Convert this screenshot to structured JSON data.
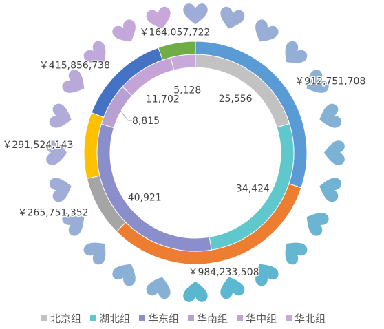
{
  "chart_data": {
    "type": "doughnut",
    "legend_position": "bottom",
    "categories": [
      "北京组",
      "湖北组",
      "华东组",
      "华南组",
      "华中组",
      "华北组"
    ],
    "colors": {
      "inner": [
        "#c2c2c2",
        "#5ec8cc",
        "#8a8fcc",
        "#b9a0d2",
        "#c4a3d6",
        "#c9a9db"
      ],
      "outer": [
        "#5b9bd5",
        "#ed7d31",
        "#a5a5a5",
        "#ffc000",
        "#4472c4",
        "#70ad47"
      ],
      "hearts_start": "#5bb7d0",
      "hearts_end": "#c9a7db"
    },
    "series": [
      {
        "ring": "outer",
        "values": [
          912751708,
          984233508,
          265751352,
          291524143,
          415856738,
          164057722
        ],
        "labels": [
          "￥912,751,708",
          "￥984,233,508",
          "￥265,751,352",
          "￥291,524,143",
          "￥415,856,738",
          "￥164,057,722"
        ]
      },
      {
        "ring": "inner",
        "values": [
          25556,
          34424,
          40921,
          8815,
          11702,
          5128
        ],
        "labels": [
          "25,556",
          "34,424",
          "40,921",
          "8,815",
          "11,702",
          "5,128"
        ]
      }
    ]
  }
}
